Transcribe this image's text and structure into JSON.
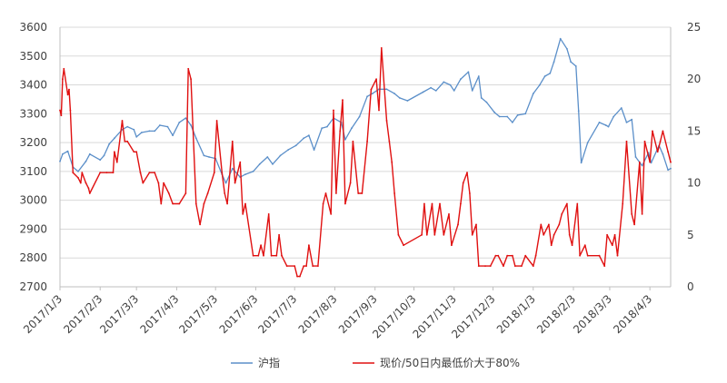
{
  "chart_data": {
    "type": "line",
    "title": "",
    "xlabel": "",
    "ylabel": "",
    "y_left": {
      "min": 2700,
      "max": 3600,
      "step": 100,
      "ticks": [
        "2700",
        "2800",
        "2900",
        "3000",
        "3100",
        "3200",
        "3300",
        "3400",
        "3500",
        "3600"
      ]
    },
    "y_right": {
      "min": 0,
      "max": 25,
      "step": 5,
      "ticks": [
        "0",
        "5",
        "10",
        "15",
        "20",
        "25"
      ]
    },
    "x_range": [
      "2017-01-03",
      "2018-04-19"
    ],
    "x_ticks": [
      "2017/1/3",
      "2017/2/3",
      "2017/3/3",
      "2017/4/3",
      "2017/5/3",
      "2017/6/3",
      "2017/7/3",
      "2017/8/3",
      "2017/9/3",
      "2017/10/3",
      "2017/11/3",
      "2017/12/3",
      "2018/1/3",
      "2018/2/3",
      "2018/3/3",
      "2018/4/3"
    ],
    "gridlines": true,
    "legend_position": "bottom",
    "colors": {
      "blue": "#5b8fc9",
      "red": "#e01010",
      "grid": "#d9d9d9",
      "axis": "#bfbfbf"
    },
    "series": [
      {
        "name": "沪指",
        "axis": "left",
        "color": "#5b8fc9",
        "points": [
          [
            "2017-01-03",
            3135
          ],
          [
            "2017-01-05",
            3160
          ],
          [
            "2017-01-09",
            3170
          ],
          [
            "2017-01-13",
            3115
          ],
          [
            "2017-01-17",
            3100
          ],
          [
            "2017-01-23",
            3135
          ],
          [
            "2017-01-26",
            3160
          ],
          [
            "2017-02-03",
            3140
          ],
          [
            "2017-02-06",
            3155
          ],
          [
            "2017-02-10",
            3195
          ],
          [
            "2017-02-14",
            3215
          ],
          [
            "2017-02-20",
            3245
          ],
          [
            "2017-02-24",
            3255
          ],
          [
            "2017-03-01",
            3245
          ],
          [
            "2017-03-03",
            3220
          ],
          [
            "2017-03-07",
            3235
          ],
          [
            "2017-03-13",
            3240
          ],
          [
            "2017-03-17",
            3240
          ],
          [
            "2017-03-21",
            3260
          ],
          [
            "2017-03-27",
            3255
          ],
          [
            "2017-03-31",
            3225
          ],
          [
            "2017-04-05",
            3270
          ],
          [
            "2017-04-10",
            3285
          ],
          [
            "2017-04-14",
            3260
          ],
          [
            "2017-04-18",
            3215
          ],
          [
            "2017-04-24",
            3155
          ],
          [
            "2017-04-28",
            3150
          ],
          [
            "2017-05-03",
            3145
          ],
          [
            "2017-05-08",
            3090
          ],
          [
            "2017-05-11",
            3060
          ],
          [
            "2017-05-16",
            3110
          ],
          [
            "2017-05-22",
            3080
          ],
          [
            "2017-05-26",
            3090
          ],
          [
            "2017-06-01",
            3100
          ],
          [
            "2017-06-06",
            3125
          ],
          [
            "2017-06-12",
            3150
          ],
          [
            "2017-06-16",
            3125
          ],
          [
            "2017-06-22",
            3155
          ],
          [
            "2017-06-28",
            3175
          ],
          [
            "2017-07-04",
            3190
          ],
          [
            "2017-07-10",
            3215
          ],
          [
            "2017-07-14",
            3225
          ],
          [
            "2017-07-18",
            3175
          ],
          [
            "2017-07-24",
            3250
          ],
          [
            "2017-07-28",
            3255
          ],
          [
            "2017-08-02",
            3285
          ],
          [
            "2017-08-08",
            3270
          ],
          [
            "2017-08-11",
            3210
          ],
          [
            "2017-08-16",
            3250
          ],
          [
            "2017-08-22",
            3290
          ],
          [
            "2017-08-28",
            3360
          ],
          [
            "2017-09-01",
            3370
          ],
          [
            "2017-09-06",
            3385
          ],
          [
            "2017-09-12",
            3385
          ],
          [
            "2017-09-18",
            3370
          ],
          [
            "2017-09-22",
            3355
          ],
          [
            "2017-09-28",
            3345
          ],
          [
            "2017-10-10",
            3375
          ],
          [
            "2017-10-16",
            3390
          ],
          [
            "2017-10-20",
            3380
          ],
          [
            "2017-10-26",
            3410
          ],
          [
            "2017-10-31",
            3400
          ],
          [
            "2017-11-03",
            3380
          ],
          [
            "2017-11-08",
            3420
          ],
          [
            "2017-11-14",
            3445
          ],
          [
            "2017-11-17",
            3380
          ],
          [
            "2017-11-22",
            3430
          ],
          [
            "2017-11-24",
            3355
          ],
          [
            "2017-11-28",
            3340
          ],
          [
            "2017-12-04",
            3305
          ],
          [
            "2017-12-08",
            3290
          ],
          [
            "2017-12-14",
            3290
          ],
          [
            "2017-12-18",
            3270
          ],
          [
            "2017-12-22",
            3295
          ],
          [
            "2017-12-28",
            3300
          ],
          [
            "2018-01-03",
            3370
          ],
          [
            "2018-01-08",
            3400
          ],
          [
            "2018-01-12",
            3430
          ],
          [
            "2018-01-16",
            3440
          ],
          [
            "2018-01-19",
            3480
          ],
          [
            "2018-01-24",
            3560
          ],
          [
            "2018-01-29",
            3525
          ],
          [
            "2018-02-01",
            3480
          ],
          [
            "2018-02-05",
            3465
          ],
          [
            "2018-02-07",
            3310
          ],
          [
            "2018-02-09",
            3130
          ],
          [
            "2018-02-14",
            3200
          ],
          [
            "2018-02-23",
            3270
          ],
          [
            "2018-02-28",
            3260
          ],
          [
            "2018-03-02",
            3255
          ],
          [
            "2018-03-06",
            3290
          ],
          [
            "2018-03-12",
            3320
          ],
          [
            "2018-03-16",
            3270
          ],
          [
            "2018-03-20",
            3280
          ],
          [
            "2018-03-23",
            3150
          ],
          [
            "2018-03-28",
            3120
          ],
          [
            "2018-04-02",
            3165
          ],
          [
            "2018-04-04",
            3130
          ],
          [
            "2018-04-10",
            3190
          ],
          [
            "2018-04-13",
            3160
          ],
          [
            "2018-04-17",
            3105
          ],
          [
            "2018-04-19",
            3110
          ]
        ]
      },
      {
        "name": "现价/50日内最低价大于80%",
        "axis": "right",
        "color": "#e01010",
        "points": [
          [
            "2017-01-03",
            17
          ],
          [
            "2017-01-04",
            16.5
          ],
          [
            "2017-01-05",
            20
          ],
          [
            "2017-01-06",
            21
          ],
          [
            "2017-01-09",
            18.5
          ],
          [
            "2017-01-10",
            19
          ],
          [
            "2017-01-11",
            17
          ],
          [
            "2017-01-13",
            11
          ],
          [
            "2017-01-17",
            10.5
          ],
          [
            "2017-01-19",
            10
          ],
          [
            "2017-01-20",
            11
          ],
          [
            "2017-01-23",
            10
          ],
          [
            "2017-01-25",
            9.5
          ],
          [
            "2017-01-26",
            9
          ],
          [
            "2017-02-03",
            11
          ],
          [
            "2017-02-08",
            11
          ],
          [
            "2017-02-13",
            11
          ],
          [
            "2017-02-14",
            13
          ],
          [
            "2017-02-16",
            12
          ],
          [
            "2017-02-20",
            16
          ],
          [
            "2017-02-22",
            14
          ],
          [
            "2017-02-24",
            14
          ],
          [
            "2017-03-01",
            13
          ],
          [
            "2017-03-03",
            13
          ],
          [
            "2017-03-06",
            11
          ],
          [
            "2017-03-08",
            10
          ],
          [
            "2017-03-13",
            11
          ],
          [
            "2017-03-17",
            11
          ],
          [
            "2017-03-20",
            10
          ],
          [
            "2017-03-22",
            8
          ],
          [
            "2017-03-24",
            10
          ],
          [
            "2017-03-28",
            9
          ],
          [
            "2017-03-31",
            8
          ],
          [
            "2017-04-05",
            8
          ],
          [
            "2017-04-10",
            9
          ],
          [
            "2017-04-12",
            21
          ],
          [
            "2017-04-14",
            20
          ],
          [
            "2017-04-18",
            8
          ],
          [
            "2017-04-21",
            6
          ],
          [
            "2017-04-24",
            8
          ],
          [
            "2017-04-27",
            9
          ],
          [
            "2017-05-02",
            11
          ],
          [
            "2017-05-04",
            16
          ],
          [
            "2017-05-08",
            11
          ],
          [
            "2017-05-10",
            9
          ],
          [
            "2017-05-12",
            8
          ],
          [
            "2017-05-16",
            14
          ],
          [
            "2017-05-18",
            10
          ],
          [
            "2017-05-22",
            12
          ],
          [
            "2017-05-24",
            7
          ],
          [
            "2017-05-26",
            8
          ],
          [
            "2017-06-01",
            3
          ],
          [
            "2017-06-05",
            3
          ],
          [
            "2017-06-07",
            4
          ],
          [
            "2017-06-09",
            3
          ],
          [
            "2017-06-13",
            7
          ],
          [
            "2017-06-15",
            3
          ],
          [
            "2017-06-19",
            3
          ],
          [
            "2017-06-21",
            5
          ],
          [
            "2017-06-23",
            3
          ],
          [
            "2017-06-27",
            2
          ],
          [
            "2017-07-03",
            2
          ],
          [
            "2017-07-05",
            1
          ],
          [
            "2017-07-07",
            1
          ],
          [
            "2017-07-10",
            2
          ],
          [
            "2017-07-12",
            2
          ],
          [
            "2017-07-14",
            4
          ],
          [
            "2017-07-17",
            2
          ],
          [
            "2017-07-21",
            2
          ],
          [
            "2017-07-25",
            8
          ],
          [
            "2017-07-27",
            9
          ],
          [
            "2017-07-31",
            7
          ],
          [
            "2017-08-02",
            17
          ],
          [
            "2017-08-04",
            9
          ],
          [
            "2017-08-07",
            15
          ],
          [
            "2017-08-09",
            18
          ],
          [
            "2017-08-11",
            8
          ],
          [
            "2017-08-15",
            10
          ],
          [
            "2017-08-17",
            14
          ],
          [
            "2017-08-21",
            9
          ],
          [
            "2017-08-24",
            9
          ],
          [
            "2017-08-28",
            14
          ],
          [
            "2017-08-31",
            19
          ],
          [
            "2017-09-04",
            20
          ],
          [
            "2017-09-06",
            17
          ],
          [
            "2017-09-08",
            23
          ],
          [
            "2017-09-12",
            16
          ],
          [
            "2017-09-14",
            14
          ],
          [
            "2017-09-16",
            12
          ],
          [
            "2017-09-18",
            9
          ],
          [
            "2017-09-21",
            5
          ],
          [
            "2017-09-25",
            4
          ],
          [
            "2017-10-09",
            5
          ],
          [
            "2017-10-11",
            8
          ],
          [
            "2017-10-13",
            5
          ],
          [
            "2017-10-17",
            8
          ],
          [
            "2017-10-19",
            5
          ],
          [
            "2017-10-23",
            8
          ],
          [
            "2017-10-26",
            5
          ],
          [
            "2017-10-30",
            7
          ],
          [
            "2017-11-01",
            4
          ],
          [
            "2017-11-06",
            6
          ],
          [
            "2017-11-08",
            8
          ],
          [
            "2017-11-10",
            10
          ],
          [
            "2017-11-13",
            11
          ],
          [
            "2017-11-15",
            9
          ],
          [
            "2017-11-17",
            5
          ],
          [
            "2017-11-20",
            6
          ],
          [
            "2017-11-22",
            2
          ],
          [
            "2017-11-27",
            2
          ],
          [
            "2017-12-01",
            2
          ],
          [
            "2017-12-05",
            3
          ],
          [
            "2017-12-07",
            3
          ],
          [
            "2017-12-11",
            2
          ],
          [
            "2017-12-14",
            3
          ],
          [
            "2017-12-18",
            3
          ],
          [
            "2017-12-20",
            2
          ],
          [
            "2017-12-25",
            2
          ],
          [
            "2017-12-28",
            3
          ],
          [
            "2018-01-03",
            2
          ],
          [
            "2018-01-05",
            3
          ],
          [
            "2018-01-09",
            6
          ],
          [
            "2018-01-11",
            5
          ],
          [
            "2018-01-15",
            6
          ],
          [
            "2018-01-17",
            4
          ],
          [
            "2018-01-19",
            5
          ],
          [
            "2018-01-23",
            6
          ],
          [
            "2018-01-25",
            7
          ],
          [
            "2018-01-29",
            8
          ],
          [
            "2018-01-31",
            5
          ],
          [
            "2018-02-02",
            4
          ],
          [
            "2018-02-06",
            8
          ],
          [
            "2018-02-08",
            3
          ],
          [
            "2018-02-12",
            4
          ],
          [
            "2018-02-14",
            3
          ],
          [
            "2018-02-23",
            3
          ],
          [
            "2018-02-27",
            2
          ],
          [
            "2018-03-01",
            5
          ],
          [
            "2018-03-05",
            4
          ],
          [
            "2018-03-07",
            5
          ],
          [
            "2018-03-09",
            3
          ],
          [
            "2018-03-13",
            8
          ],
          [
            "2018-03-16",
            14
          ],
          [
            "2018-03-20",
            7
          ],
          [
            "2018-03-22",
            6
          ],
          [
            "2018-03-26",
            12
          ],
          [
            "2018-03-28",
            7
          ],
          [
            "2018-03-30",
            14
          ],
          [
            "2018-04-03",
            12
          ],
          [
            "2018-04-05",
            15
          ],
          [
            "2018-04-09",
            13
          ],
          [
            "2018-04-11",
            14
          ],
          [
            "2018-04-13",
            15
          ],
          [
            "2018-04-17",
            13
          ],
          [
            "2018-04-19",
            12
          ]
        ]
      }
    ]
  }
}
